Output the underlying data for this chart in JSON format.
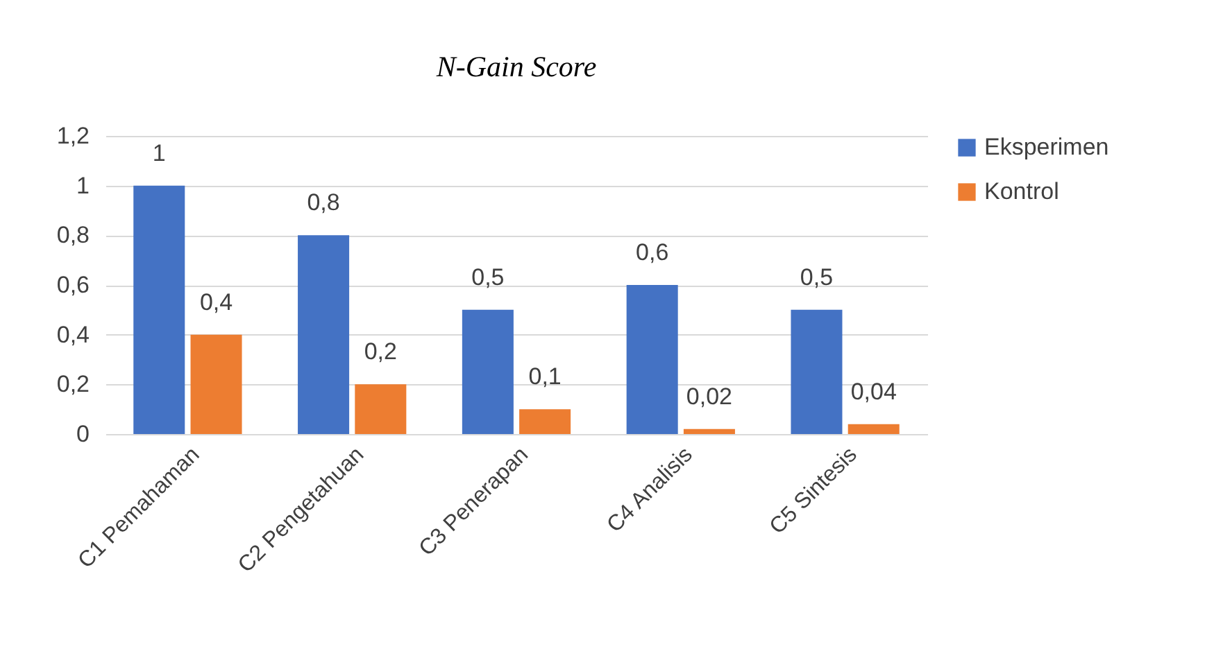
{
  "chart_data": {
    "type": "bar",
    "title": "N-Gain Score",
    "categories": [
      "C1 Pemahaman",
      "C2 Pengetahuan",
      "C3 Penerapan",
      "C4  Analisis",
      "C5 Sintesis"
    ],
    "series": [
      {
        "name": "Eksperimen",
        "color": "#4472c4",
        "values": [
          1,
          0.8,
          0.5,
          0.6,
          0.5
        ],
        "value_labels": [
          "1",
          "0,8",
          "0,5",
          "0,6",
          "0,5"
        ]
      },
      {
        "name": "Kontrol",
        "color": "#ed7d31",
        "values": [
          0.4,
          0.2,
          0.1,
          0.02,
          0.04
        ],
        "value_labels": [
          "0,4",
          "0,2",
          "0,1",
          "0,02",
          "0,04"
        ]
      }
    ],
    "ylim": [
      0,
      1.2
    ],
    "yticks": [
      0,
      {
        "value": 0.2,
        "label": "0,2"
      },
      {
        "value": 0.4,
        "label": "0,4"
      },
      {
        "value": 0.6,
        "label": "0,6"
      },
      {
        "value": 0.8,
        "label": "0,8"
      },
      1,
      {
        "value": 1.2,
        "label": "1,2"
      }
    ],
    "grid": "y",
    "legend": "right"
  }
}
